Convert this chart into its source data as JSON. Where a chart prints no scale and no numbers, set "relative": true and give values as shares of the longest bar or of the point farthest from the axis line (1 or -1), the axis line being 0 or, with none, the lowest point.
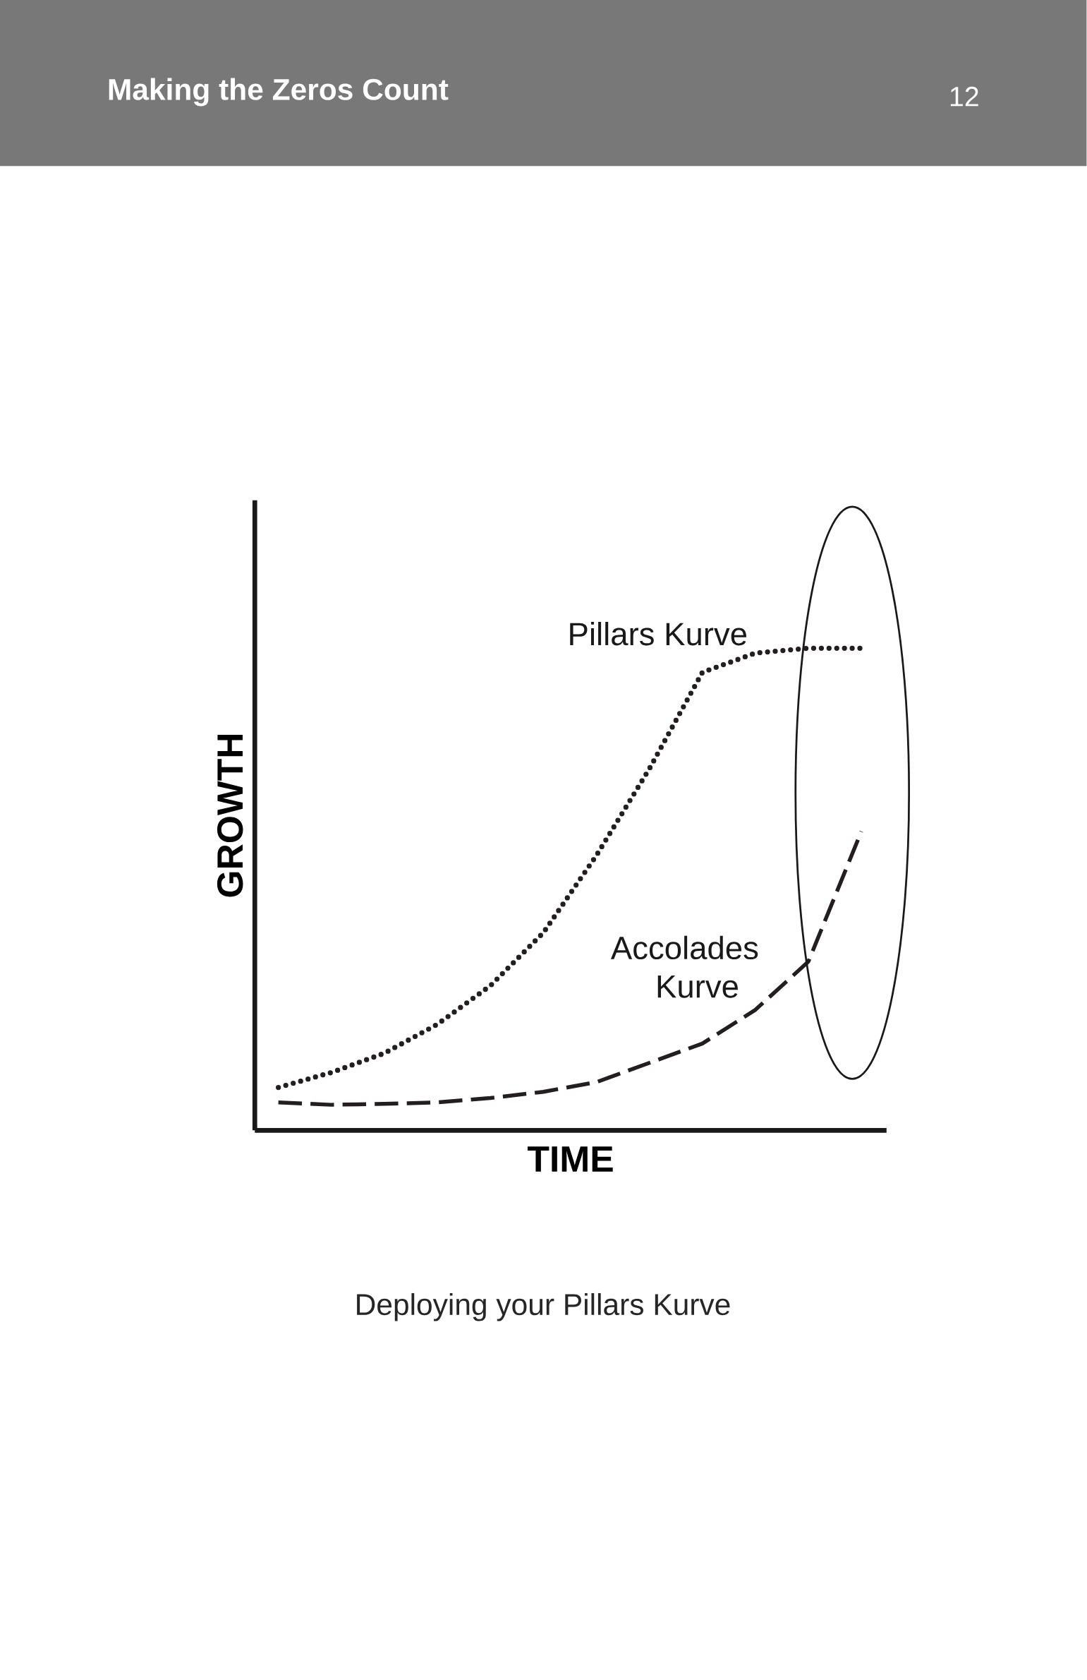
{
  "chart_data": {
    "type": "line",
    "title": "Making the Zeros Count",
    "xlabel": "TIME",
    "ylabel": "GROWTH",
    "relative": true,
    "categories": [
      null,
      null,
      null,
      null,
      null,
      null,
      null,
      null,
      null,
      null,
      null,
      null
    ],
    "series": [
      {
        "name": "Pillars Kurve",
        "color": "#231f20",
        "line_style": "dotted",
        "values": [
          0.089,
          0.12,
          0.16,
          0.22,
          0.3,
          0.41,
          0.57,
          0.75,
          0.95,
          0.99,
          1.0,
          1.0
        ]
      },
      {
        "name": "Accolades Kurve",
        "color": "#231f20",
        "line_style": "dashed",
        "values": [
          0.058,
          0.053,
          0.055,
          0.058,
          0.067,
          0.08,
          0.1,
          0.14,
          0.18,
          0.25,
          0.35,
          0.62
        ]
      }
    ],
    "annotations": [
      "12",
      "Deploying your Pillars Kurve"
    ]
  }
}
